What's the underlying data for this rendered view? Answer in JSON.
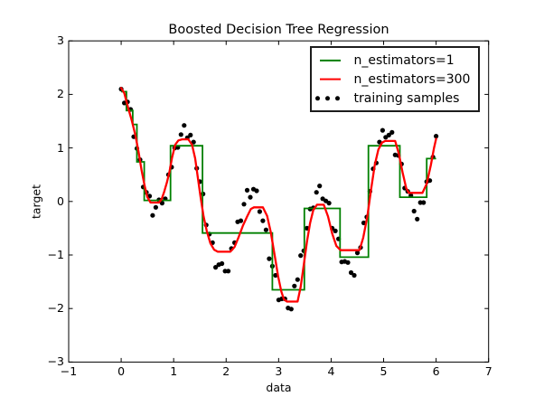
{
  "title": "Boosted Decision Tree Regression",
  "axes": {
    "xlabel": "data",
    "ylabel": "target",
    "xlim": [
      -1,
      7
    ],
    "ylim": [
      -3,
      3
    ],
    "x_tick_values": [
      -1,
      0,
      1,
      2,
      3,
      4,
      5,
      6,
      7
    ],
    "x_tick_labels": [
      "−1",
      "0",
      "1",
      "2",
      "3",
      "4",
      "5",
      "6",
      "7"
    ],
    "y_tick_values": [
      -3,
      -2,
      -1,
      0,
      1,
      2,
      3
    ],
    "y_tick_labels": [
      "−3",
      "−2",
      "−1",
      "0",
      "1",
      "2",
      "3"
    ],
    "grid": false
  },
  "legend": {
    "position": "upper right",
    "items": [
      {
        "label": "n_estimators=1",
        "type": "line",
        "color": "#008000"
      },
      {
        "label": "n_estimators=300",
        "type": "line",
        "color": "#ff0000"
      },
      {
        "label": "training samples",
        "type": "markers",
        "color": "#000000"
      }
    ]
  },
  "chart_data": {
    "type": "line",
    "title": "Boosted Decision Tree Regression",
    "xlabel": "data",
    "ylabel": "target",
    "xlim": [
      -1,
      7
    ],
    "ylim": [
      -3,
      3
    ],
    "legend_position": "upper right",
    "series": [
      {
        "name": "training samples",
        "style": "scatter",
        "color": "#000000",
        "marker_radius": 2.6,
        "x_start": 0,
        "x_step": 0.06,
        "y": [
          2.1,
          1.84,
          1.86,
          1.72,
          1.21,
          0.99,
          0.78,
          0.27,
          0.17,
          0.1,
          -0.26,
          -0.11,
          0.03,
          -0.03,
          0.05,
          0.5,
          0.64,
          1.0,
          1.01,
          1.25,
          1.42,
          1.19,
          1.24,
          1.11,
          0.62,
          0.37,
          0.14,
          -0.44,
          -0.61,
          -0.77,
          -1.23,
          -1.18,
          -1.16,
          -1.3,
          -1.3,
          -0.88,
          -0.77,
          -0.38,
          -0.36,
          -0.05,
          0.21,
          0.08,
          0.23,
          0.2,
          -0.19,
          -0.36,
          -0.53,
          -1.07,
          -1.21,
          -1.38,
          -1.84,
          -1.82,
          -1.82,
          -1.99,
          -2.01,
          -1.58,
          -1.46,
          -1.01,
          -0.92,
          -0.5,
          -0.14,
          -0.12,
          0.17,
          0.29,
          0.05,
          0.01,
          -0.03,
          -0.5,
          -0.55,
          -0.7,
          -1.13,
          -1.12,
          -1.14,
          -1.33,
          -1.38,
          -0.96,
          -0.86,
          -0.4,
          -0.29,
          0.19,
          0.61,
          0.72,
          1.11,
          1.33,
          1.2,
          1.24,
          1.29,
          0.87,
          0.86,
          0.7,
          0.25,
          0.19,
          0.11,
          -0.18,
          -0.33,
          -0.02,
          -0.02,
          0.37,
          0.39,
          0.83,
          1.22
        ]
      },
      {
        "name": "n_estimators=1",
        "style": "step",
        "color": "#008000",
        "line_width": 1.8,
        "steps": [
          {
            "x0": 0.0,
            "x1": 0.1,
            "y": 2.05
          },
          {
            "x0": 0.1,
            "x1": 0.22,
            "y": 1.7
          },
          {
            "x0": 0.22,
            "x1": 0.3,
            "y": 1.44
          },
          {
            "x0": 0.3,
            "x1": 0.44,
            "y": 0.74
          },
          {
            "x0": 0.44,
            "x1": 0.94,
            "y": 0.02
          },
          {
            "x0": 0.94,
            "x1": 1.55,
            "y": 1.04
          },
          {
            "x0": 1.55,
            "x1": 2.88,
            "y": -0.59
          },
          {
            "x0": 2.88,
            "x1": 3.49,
            "y": -1.65
          },
          {
            "x0": 3.49,
            "x1": 4.17,
            "y": -0.13
          },
          {
            "x0": 4.17,
            "x1": 4.71,
            "y": -1.04
          },
          {
            "x0": 4.71,
            "x1": 5.31,
            "y": 1.04
          },
          {
            "x0": 5.31,
            "x1": 5.82,
            "y": 0.08
          },
          {
            "x0": 5.82,
            "x1": 6.0,
            "y": 0.8
          }
        ]
      },
      {
        "name": "n_estimators=300",
        "style": "line",
        "color": "#ff0000",
        "line_width": 2.3,
        "points": [
          [
            0.0,
            2.12
          ],
          [
            0.06,
            2.02
          ],
          [
            0.13,
            1.76
          ],
          [
            0.2,
            1.52
          ],
          [
            0.27,
            1.24
          ],
          [
            0.33,
            0.93
          ],
          [
            0.39,
            0.58
          ],
          [
            0.45,
            0.28
          ],
          [
            0.5,
            0.08
          ],
          [
            0.56,
            -0.02
          ],
          [
            0.72,
            -0.02
          ],
          [
            0.77,
            0.04
          ],
          [
            0.82,
            0.18
          ],
          [
            0.87,
            0.35
          ],
          [
            0.92,
            0.55
          ],
          [
            0.97,
            0.82
          ],
          [
            1.03,
            1.06
          ],
          [
            1.09,
            1.14
          ],
          [
            1.16,
            1.16
          ],
          [
            1.28,
            1.16
          ],
          [
            1.35,
            1.06
          ],
          [
            1.41,
            0.8
          ],
          [
            1.46,
            0.45
          ],
          [
            1.51,
            0.1
          ],
          [
            1.57,
            -0.28
          ],
          [
            1.63,
            -0.55
          ],
          [
            1.7,
            -0.78
          ],
          [
            1.77,
            -0.9
          ],
          [
            1.84,
            -0.94
          ],
          [
            2.08,
            -0.94
          ],
          [
            2.16,
            -0.85
          ],
          [
            2.24,
            -0.66
          ],
          [
            2.32,
            -0.45
          ],
          [
            2.4,
            -0.28
          ],
          [
            2.47,
            -0.14
          ],
          [
            2.53,
            -0.11
          ],
          [
            2.7,
            -0.11
          ],
          [
            2.78,
            -0.27
          ],
          [
            2.85,
            -0.57
          ],
          [
            2.92,
            -0.98
          ],
          [
            2.99,
            -1.4
          ],
          [
            3.05,
            -1.68
          ],
          [
            3.1,
            -1.83
          ],
          [
            3.16,
            -1.87
          ],
          [
            3.36,
            -1.87
          ],
          [
            3.42,
            -1.6
          ],
          [
            3.48,
            -1.18
          ],
          [
            3.54,
            -0.75
          ],
          [
            3.6,
            -0.4
          ],
          [
            3.66,
            -0.16
          ],
          [
            3.73,
            -0.06
          ],
          [
            3.86,
            -0.06
          ],
          [
            3.94,
            -0.28
          ],
          [
            4.02,
            -0.6
          ],
          [
            4.1,
            -0.83
          ],
          [
            4.18,
            -0.91
          ],
          [
            4.54,
            -0.91
          ],
          [
            4.61,
            -0.68
          ],
          [
            4.69,
            -0.28
          ],
          [
            4.76,
            0.22
          ],
          [
            4.83,
            0.68
          ],
          [
            4.9,
            0.97
          ],
          [
            4.97,
            1.1
          ],
          [
            5.03,
            1.13
          ],
          [
            5.22,
            1.13
          ],
          [
            5.29,
            0.89
          ],
          [
            5.36,
            0.55
          ],
          [
            5.43,
            0.25
          ],
          [
            5.48,
            0.16
          ],
          [
            5.74,
            0.16
          ],
          [
            5.82,
            0.33
          ],
          [
            5.9,
            0.68
          ],
          [
            5.96,
            1.0
          ],
          [
            6.0,
            1.17
          ]
        ]
      }
    ]
  }
}
